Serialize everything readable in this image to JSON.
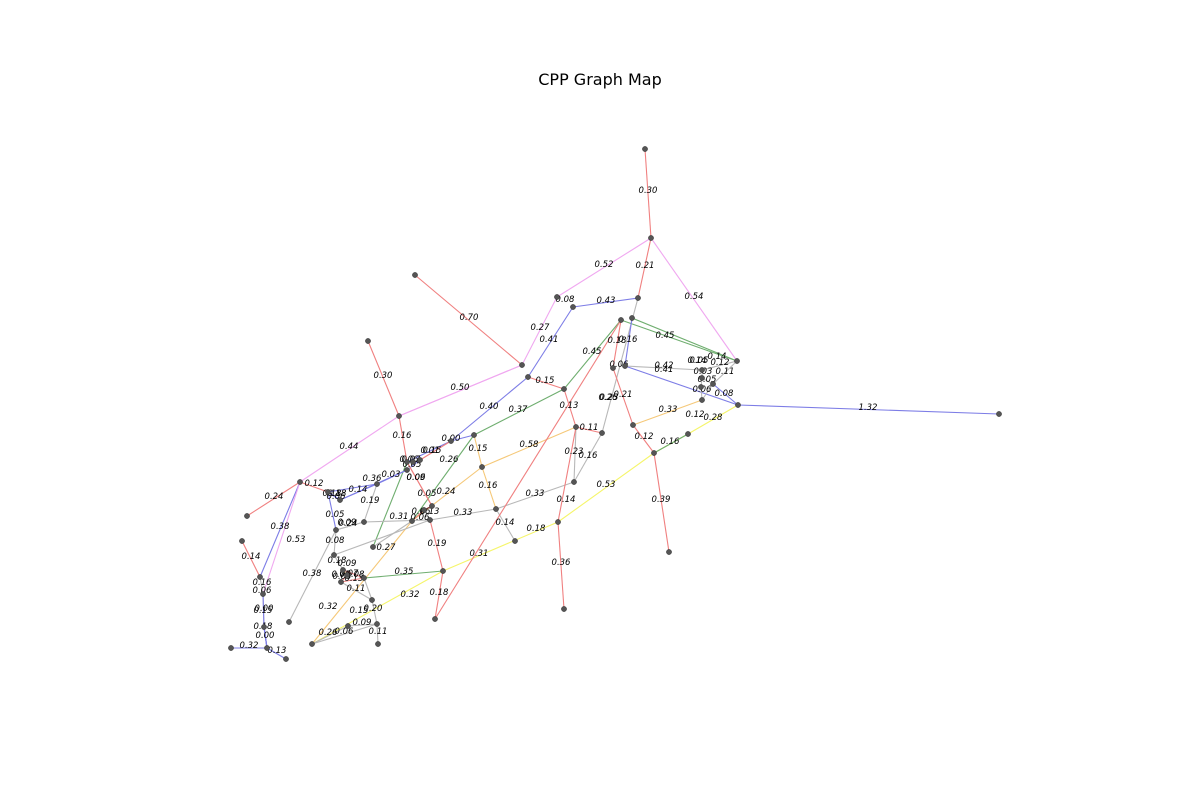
{
  "title": "CPP Graph Map",
  "colors": {
    "red": "#f08080",
    "blue": "#7d7de6",
    "violet": "#f0a8f0",
    "green": "#6fae6f",
    "gray": "#b8b8b8",
    "orange": "#f5c878",
    "yellow": "#f5f56a",
    "node": "#555555"
  },
  "edges": [
    {
      "color": "red",
      "label": "0.30"
    },
    {
      "color": "red",
      "label": "0.21"
    },
    {
      "color": "violet",
      "label": "0.52"
    },
    {
      "color": "violet",
      "label": "0.54"
    },
    {
      "color": "red",
      "label": "0.70"
    },
    {
      "color": "blue",
      "label": "0.43"
    },
    {
      "color": "violet",
      "label": "0.08"
    },
    {
      "color": "violet",
      "label": "0.27"
    },
    {
      "color": "blue",
      "label": "0.41"
    },
    {
      "color": "green",
      "label": "0.45"
    },
    {
      "color": "green",
      "label": "0.45"
    },
    {
      "color": "violet",
      "label": "0.50"
    },
    {
      "color": "red",
      "label": "0.30"
    },
    {
      "color": "red",
      "label": "0.16"
    },
    {
      "color": "violet",
      "label": "0.44"
    },
    {
      "color": "red",
      "label": "0.24"
    },
    {
      "color": "blue",
      "label": "0.40"
    },
    {
      "color": "green",
      "label": "0.37"
    },
    {
      "color": "red",
      "label": "0.15"
    },
    {
      "color": "red",
      "label": "0.13"
    },
    {
      "color": "blue",
      "label": "1.32"
    },
    {
      "color": "orange",
      "label": "0.33"
    },
    {
      "color": "orange",
      "label": "0.58"
    },
    {
      "color": "gray",
      "label": "0.33"
    },
    {
      "color": "gray",
      "label": "0.33"
    },
    {
      "color": "yellow",
      "label": "0.53"
    },
    {
      "color": "yellow",
      "label": "0.31"
    },
    {
      "color": "red",
      "label": "0.36"
    },
    {
      "color": "red",
      "label": "0.39"
    },
    {
      "color": "red",
      "label": "0.19"
    },
    {
      "color": "red",
      "label": "0.18"
    },
    {
      "color": "green",
      "label": "0.35"
    },
    {
      "color": "yellow",
      "label": "0.32"
    },
    {
      "color": "orange",
      "label": "0.32"
    },
    {
      "color": "gray",
      "label": "0.38"
    },
    {
      "color": "blue",
      "label": "0.53"
    },
    {
      "color": "violet",
      "label": "0.38"
    },
    {
      "color": "red",
      "label": "0.14"
    },
    {
      "color": "blue",
      "label": "0.32"
    },
    {
      "color": "blue",
      "label": "0.13"
    },
    {
      "color": "gray",
      "label": "0.14"
    },
    {
      "color": "gray",
      "label": "0.18"
    },
    {
      "color": "orange",
      "label": "0.16"
    },
    {
      "color": "green",
      "label": "0.27"
    },
    {
      "color": "gray",
      "label": "0.24"
    },
    {
      "color": "blue",
      "label": "0.36"
    },
    {
      "color": "gray",
      "label": "0.19"
    },
    {
      "color": "red",
      "label": "0.12"
    },
    {
      "color": "green",
      "label": "0.26"
    },
    {
      "color": "orange",
      "label": "0.24"
    },
    {
      "color": "gray",
      "label": "0.31"
    },
    {
      "color": "red",
      "label": "0.09"
    },
    {
      "color": "orange",
      "label": "0.15"
    },
    {
      "color": "gray",
      "label": "0.16"
    },
    {
      "color": "gray",
      "label": "0.23"
    },
    {
      "color": "gray",
      "label": "0.23"
    },
    {
      "color": "red",
      "label": "0.14"
    },
    {
      "color": "red",
      "label": "0.21"
    },
    {
      "color": "red",
      "label": "0.12"
    },
    {
      "color": "yellow",
      "label": "0.16"
    },
    {
      "color": "yellow",
      "label": "0.28"
    },
    {
      "color": "gray",
      "label": "0.42"
    },
    {
      "color": "blue",
      "label": "0.41"
    },
    {
      "color": "green",
      "label": "0.14"
    },
    {
      "color": "gray",
      "label": "0.14"
    },
    {
      "color": "red",
      "label": "0.26"
    },
    {
      "color": "blue",
      "label": "0.16"
    },
    {
      "color": "red",
      "label": "0.18"
    },
    {
      "color": "red",
      "label": "0.11"
    },
    {
      "color": "gray",
      "label": "0.06"
    },
    {
      "color": "gray",
      "label": "0.05"
    },
    {
      "color": "gray",
      "label": "0.12"
    },
    {
      "color": "gray",
      "label": "0.11"
    },
    {
      "color": "gray",
      "label": "0.03"
    },
    {
      "color": "gray",
      "label": "0.05"
    },
    {
      "color": "gray",
      "label": "0.06"
    },
    {
      "color": "blue",
      "label": "0.08"
    },
    {
      "color": "green",
      "label": "0.12"
    },
    {
      "color": "gray",
      "label": "0.06"
    },
    {
      "color": "gray",
      "label": "0.05"
    },
    {
      "color": "blue",
      "label": "0.07"
    },
    {
      "color": "red",
      "label": "0.01"
    },
    {
      "color": "blue",
      "label": "0.00"
    },
    {
      "color": "blue",
      "label": "0.15"
    },
    {
      "color": "blue",
      "label": "0.18"
    },
    {
      "color": "red",
      "label": "0.06"
    },
    {
      "color": "red",
      "label": "0.05"
    },
    {
      "color": "blue",
      "label": "0.03"
    },
    {
      "color": "blue",
      "label": "0.14"
    },
    {
      "color": "blue",
      "label": "0.18"
    },
    {
      "color": "blue",
      "label": "0.06"
    },
    {
      "color": "blue",
      "label": "0.05"
    },
    {
      "color": "gray",
      "label": "0.08"
    },
    {
      "color": "gray",
      "label": "0.06"
    },
    {
      "color": "gray",
      "label": "0.09"
    },
    {
      "color": "gray",
      "label": "0.18"
    },
    {
      "color": "red",
      "label": "0.13"
    },
    {
      "color": "orange",
      "label": "0.09"
    },
    {
      "color": "red",
      "label": "0.06"
    },
    {
      "color": "red",
      "label": "0.05"
    },
    {
      "color": "gray",
      "label": "0.07"
    },
    {
      "color": "red",
      "label": "0.13"
    },
    {
      "color": "red",
      "label": "0.08"
    },
    {
      "color": "gray",
      "label": "0.11"
    },
    {
      "color": "gray",
      "label": "0.03"
    },
    {
      "color": "gray",
      "label": "0.15"
    },
    {
      "color": "gray",
      "label": "0.20"
    },
    {
      "color": "gray",
      "label": "0.09"
    },
    {
      "color": "gray",
      "label": "0.11"
    },
    {
      "color": "gray",
      "label": "0.06"
    },
    {
      "color": "gray",
      "label": "0.26"
    },
    {
      "color": "gray",
      "label": "0.16"
    },
    {
      "color": "blue",
      "label": "0.06"
    },
    {
      "color": "blue",
      "label": "0.00"
    },
    {
      "color": "blue",
      "label": "0.15"
    },
    {
      "color": "blue",
      "label": "0.18"
    },
    {
      "color": "blue",
      "label": "0.00"
    },
    {
      "color": "blue",
      "label": "0.04"
    },
    {
      "color": "blue",
      "label": "0.10"
    }
  ]
}
